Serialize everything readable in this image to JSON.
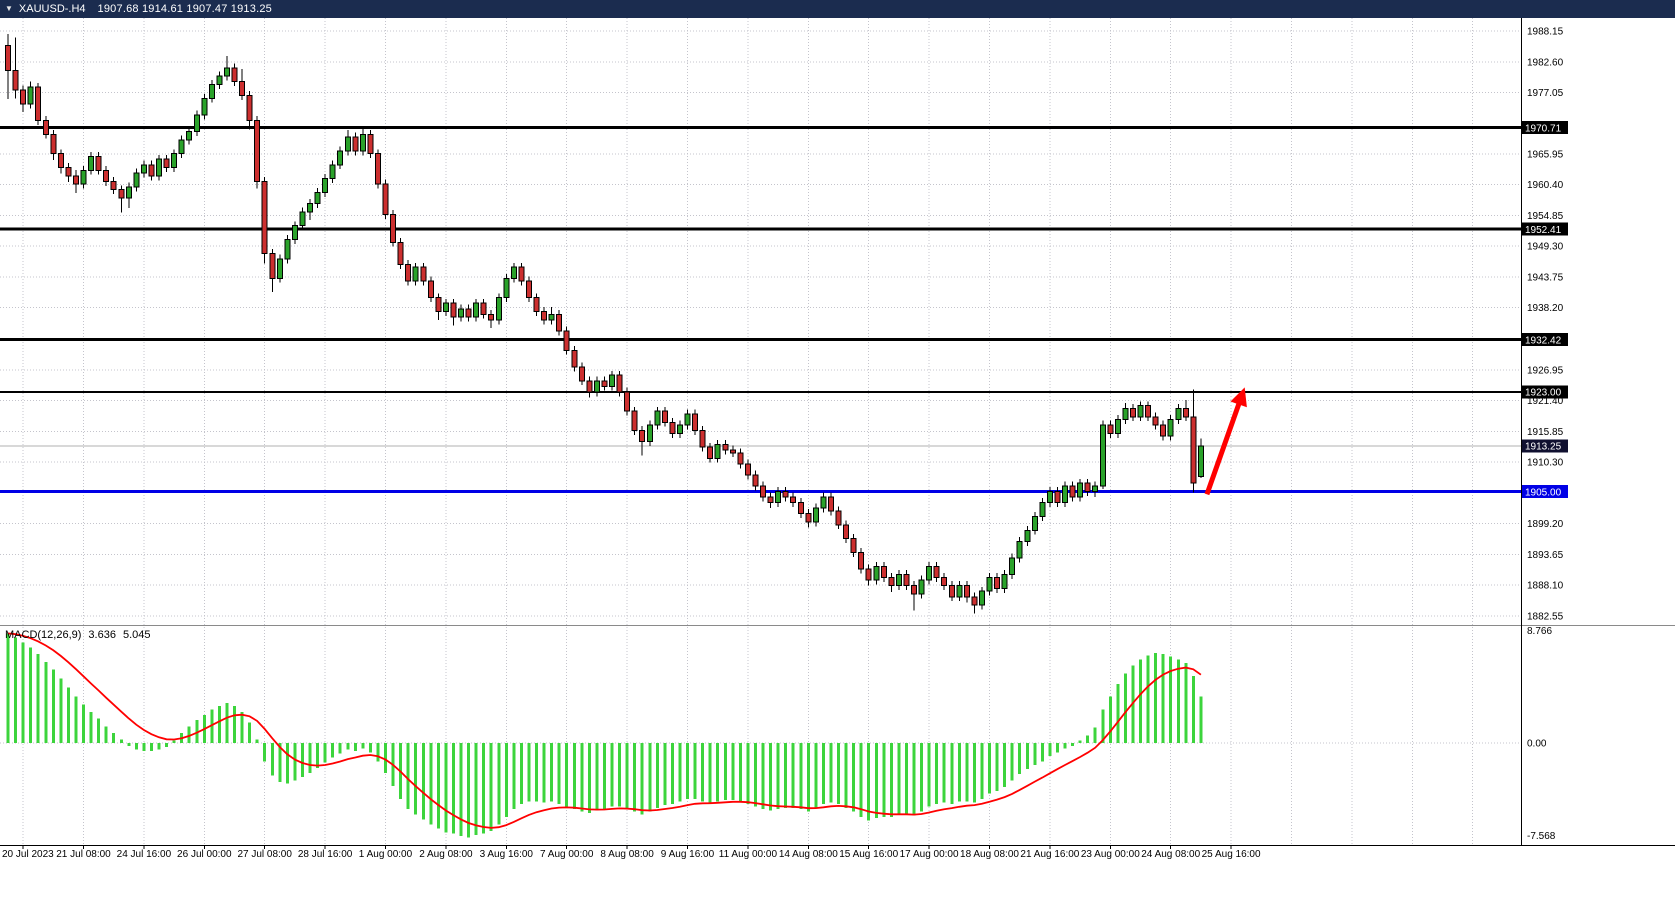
{
  "title_bar": {
    "dropdown_icon": "▼",
    "symbol": "XAUUSD-.H4",
    "ohlc": "1907.68 1914.61 1907.47 1913.25"
  },
  "chart_data": {
    "type": "candlestick",
    "symbol": "XAUUSD",
    "timeframe": "H4",
    "title": "XAUUSD-.H4",
    "ohlc_display": {
      "open": "1907.68",
      "high": "1914.61",
      "low": "1907.47",
      "close": "1913.25"
    },
    "price_axis": {
      "range_top": 1990.5,
      "range_bottom": 1880.9,
      "ticks": [
        "1988.15",
        "1982.60",
        "1977.05",
        "1965.95",
        "1960.40",
        "1954.85",
        "1949.30",
        "1943.75",
        "1938.20",
        "1926.95",
        "1921.40",
        "1915.85",
        "1910.30",
        "1899.20",
        "1893.65",
        "1888.10",
        "1882.55"
      ]
    },
    "time_labels": [
      "20 Jul 2023",
      "21 Jul 08:00",
      "24 Jul 16:00",
      "26 Jul 00:00",
      "27 Jul 08:00",
      "28 Jul 16:00",
      "1 Aug 00:00",
      "2 Aug 08:00",
      "3 Aug 16:00",
      "7 Aug 00:00",
      "8 Aug 08:00",
      "9 Aug 16:00",
      "11 Aug 00:00",
      "14 Aug 08:00",
      "15 Aug 16:00",
      "17 Aug 00:00",
      "18 Aug 08:00",
      "21 Aug 16:00",
      "23 Aug 00:00",
      "24 Aug 08:00",
      "25 Aug 16:00"
    ],
    "bars_per_label": 8,
    "first_label_bar_index": 2,
    "hlines": [
      {
        "label": "1970.71",
        "price": 1970.71,
        "color": "#000000",
        "width": 3,
        "badge_bg": "#000000"
      },
      {
        "label": "1952.41",
        "price": 1952.41,
        "color": "#000000",
        "width": 3,
        "badge_bg": "#000000"
      },
      {
        "label": "1932.42",
        "price": 1932.42,
        "color": "#000000",
        "width": 3,
        "badge_bg": "#000000"
      },
      {
        "label": "1923.00",
        "price": 1923.0,
        "color": "#000000",
        "width": 2,
        "badge_bg": "#000000"
      },
      {
        "label": "1905.00",
        "price": 1905.0,
        "color": "#0000e6",
        "width": 3,
        "badge_bg": "#0000e6"
      }
    ],
    "current_price": {
      "label": "1913.25",
      "value": 1913.25,
      "line_color": "#b0b0b0",
      "badge_bg": "#101030"
    },
    "arrow_annotation": {
      "from_bar": 158.8,
      "from_price": 1904.5,
      "to_bar": 163.8,
      "to_price": 1923.8,
      "color": "#ff0000"
    },
    "candles": [
      [
        1985.5,
        1987.6,
        1975.9,
        1981.0
      ],
      [
        1981.0,
        1987.0,
        1976.0,
        1977.5
      ],
      [
        1977.5,
        1978.3,
        1973.5,
        1975.0
      ],
      [
        1975.0,
        1979.0,
        1974.2,
        1978.0
      ],
      [
        1978.0,
        1978.8,
        1971.2,
        1972.0
      ],
      [
        1972.0,
        1972.8,
        1968.7,
        1969.5
      ],
      [
        1969.5,
        1970.3,
        1964.9,
        1966.0
      ],
      [
        1966.0,
        1966.8,
        1962.4,
        1963.5
      ],
      [
        1963.5,
        1964.3,
        1960.9,
        1962.0
      ],
      [
        1962.0,
        1963.1,
        1958.9,
        1960.5
      ],
      [
        1960.5,
        1963.8,
        1959.7,
        1963.0
      ],
      [
        1963.0,
        1966.3,
        1962.2,
        1965.5
      ],
      [
        1965.5,
        1966.3,
        1962.2,
        1963.0
      ],
      [
        1963.0,
        1963.8,
        1960.2,
        1961.0
      ],
      [
        1961.0,
        1961.8,
        1958.7,
        1959.5
      ],
      [
        1959.5,
        1960.3,
        1955.4,
        1958.0
      ],
      [
        1958.0,
        1960.8,
        1956.2,
        1960.0
      ],
      [
        1960.0,
        1963.3,
        1959.2,
        1962.5
      ],
      [
        1962.5,
        1964.8,
        1961.7,
        1964.0
      ],
      [
        1964.0,
        1964.8,
        1961.2,
        1962.0
      ],
      [
        1962.0,
        1965.8,
        1961.2,
        1965.0
      ],
      [
        1965.0,
        1965.8,
        1962.7,
        1963.5
      ],
      [
        1963.5,
        1966.8,
        1962.7,
        1966.0
      ],
      [
        1966.0,
        1969.3,
        1965.2,
        1968.5
      ],
      [
        1968.5,
        1970.8,
        1967.7,
        1970.0
      ],
      [
        1970.0,
        1973.8,
        1969.2,
        1973.0
      ],
      [
        1973.0,
        1976.8,
        1972.2,
        1976.0
      ],
      [
        1976.0,
        1979.3,
        1975.2,
        1978.5
      ],
      [
        1978.5,
        1980.8,
        1977.7,
        1980.0
      ],
      [
        1980.0,
        1983.6,
        1979.2,
        1981.5
      ],
      [
        1981.5,
        1982.3,
        1978.2,
        1979.0
      ],
      [
        1979.0,
        1981.3,
        1975.7,
        1976.5
      ],
      [
        1976.5,
        1977.3,
        1970.4,
        1972.0
      ],
      [
        1972.0,
        1972.8,
        1959.7,
        1961.0
      ],
      [
        1961.0,
        1961.8,
        1946.2,
        1948.0
      ],
      [
        1948.0,
        1948.8,
        1941.0,
        1943.5
      ],
      [
        1943.5,
        1947.8,
        1942.7,
        1947.0
      ],
      [
        1947.0,
        1951.3,
        1946.2,
        1950.5
      ],
      [
        1950.5,
        1953.8,
        1949.7,
        1953.0
      ],
      [
        1953.0,
        1956.3,
        1952.2,
        1955.5
      ],
      [
        1955.5,
        1957.8,
        1954.0,
        1957.0
      ],
      [
        1957.0,
        1959.8,
        1956.2,
        1959.0
      ],
      [
        1959.0,
        1962.3,
        1958.2,
        1961.5
      ],
      [
        1961.5,
        1964.8,
        1960.7,
        1964.0
      ],
      [
        1964.0,
        1967.3,
        1963.2,
        1966.5
      ],
      [
        1966.5,
        1970.3,
        1965.7,
        1969.0
      ],
      [
        1969.0,
        1969.8,
        1965.7,
        1966.5
      ],
      [
        1966.5,
        1970.5,
        1965.7,
        1969.5
      ],
      [
        1969.5,
        1970.3,
        1965.2,
        1966.0
      ],
      [
        1966.0,
        1966.8,
        1959.7,
        1960.5
      ],
      [
        1960.5,
        1961.3,
        1954.2,
        1955.0
      ],
      [
        1955.0,
        1955.8,
        1949.2,
        1950.0
      ],
      [
        1950.0,
        1950.8,
        1945.2,
        1946.0
      ],
      [
        1946.0,
        1946.8,
        1942.2,
        1943.0
      ],
      [
        1943.0,
        1946.3,
        1942.2,
        1945.5
      ],
      [
        1945.5,
        1946.3,
        1942.2,
        1943.0
      ],
      [
        1943.0,
        1943.8,
        1939.2,
        1940.0
      ],
      [
        1940.0,
        1940.8,
        1936.0,
        1937.5
      ],
      [
        1937.5,
        1939.8,
        1936.7,
        1939.0
      ],
      [
        1939.0,
        1939.8,
        1935.0,
        1936.5
      ],
      [
        1936.5,
        1938.8,
        1935.7,
        1938.0
      ],
      [
        1938.0,
        1938.8,
        1935.7,
        1936.5
      ],
      [
        1936.5,
        1939.8,
        1935.7,
        1939.0
      ],
      [
        1939.0,
        1939.8,
        1936.2,
        1937.0
      ],
      [
        1937.0,
        1937.8,
        1934.5,
        1936.0
      ],
      [
        1936.0,
        1940.8,
        1935.2,
        1940.0
      ],
      [
        1940.0,
        1944.3,
        1939.2,
        1943.5
      ],
      [
        1943.5,
        1946.3,
        1942.7,
        1945.5
      ],
      [
        1945.5,
        1946.3,
        1942.2,
        1943.0
      ],
      [
        1943.0,
        1943.8,
        1939.2,
        1940.0
      ],
      [
        1940.0,
        1940.8,
        1936.7,
        1937.5
      ],
      [
        1937.5,
        1938.3,
        1935.2,
        1936.0
      ],
      [
        1936.0,
        1938.3,
        1935.2,
        1937.0
      ],
      [
        1937.0,
        1937.8,
        1933.2,
        1934.0
      ],
      [
        1934.0,
        1934.8,
        1929.7,
        1930.5
      ],
      [
        1930.5,
        1931.3,
        1926.7,
        1927.5
      ],
      [
        1927.5,
        1928.3,
        1924.2,
        1925.0
      ],
      [
        1925.0,
        1925.8,
        1922.0,
        1923.0
      ],
      [
        1923.0,
        1925.8,
        1922.2,
        1925.0
      ],
      [
        1925.0,
        1925.8,
        1923.2,
        1924.0
      ],
      [
        1924.0,
        1926.8,
        1923.2,
        1926.0
      ],
      [
        1926.0,
        1926.8,
        1922.2,
        1923.0
      ],
      [
        1923.0,
        1923.8,
        1918.7,
        1919.5
      ],
      [
        1919.5,
        1920.3,
        1915.2,
        1916.0
      ],
      [
        1916.0,
        1916.8,
        1911.5,
        1914.0
      ],
      [
        1914.0,
        1917.8,
        1913.2,
        1917.0
      ],
      [
        1917.0,
        1920.3,
        1916.2,
        1919.5
      ],
      [
        1919.5,
        1920.3,
        1916.7,
        1917.5
      ],
      [
        1917.5,
        1918.3,
        1914.7,
        1915.5
      ],
      [
        1915.5,
        1917.8,
        1914.7,
        1917.0
      ],
      [
        1917.0,
        1919.8,
        1916.2,
        1919.0
      ],
      [
        1919.0,
        1919.8,
        1915.2,
        1916.0
      ],
      [
        1916.0,
        1916.8,
        1912.2,
        1913.0
      ],
      [
        1913.0,
        1913.8,
        1910.2,
        1911.0
      ],
      [
        1911.0,
        1914.3,
        1910.2,
        1913.5
      ],
      [
        1913.5,
        1914.3,
        1911.7,
        1912.5
      ],
      [
        1912.5,
        1913.3,
        1911.2,
        1912.0
      ],
      [
        1912.0,
        1912.8,
        1909.2,
        1910.0
      ],
      [
        1910.0,
        1910.8,
        1907.2,
        1908.0
      ],
      [
        1908.0,
        1908.8,
        1905.2,
        1906.0
      ],
      [
        1906.0,
        1906.8,
        1903.2,
        1904.0
      ],
      [
        1904.0,
        1904.8,
        1902.0,
        1903.0
      ],
      [
        1903.0,
        1905.8,
        1902.2,
        1905.0
      ],
      [
        1905.0,
        1905.8,
        1903.2,
        1904.0
      ],
      [
        1904.0,
        1904.8,
        1902.2,
        1903.0
      ],
      [
        1903.0,
        1903.8,
        1900.2,
        1901.0
      ],
      [
        1901.0,
        1901.8,
        1898.5,
        1899.5
      ],
      [
        1899.5,
        1902.8,
        1898.7,
        1902.0
      ],
      [
        1902.0,
        1904.8,
        1901.2,
        1904.0
      ],
      [
        1904.0,
        1904.8,
        1900.7,
        1901.5
      ],
      [
        1901.5,
        1902.3,
        1898.2,
        1899.0
      ],
      [
        1899.0,
        1899.8,
        1895.7,
        1896.5
      ],
      [
        1896.5,
        1897.3,
        1893.2,
        1894.0
      ],
      [
        1894.0,
        1894.8,
        1890.2,
        1891.0
      ],
      [
        1891.0,
        1891.8,
        1888.0,
        1889.0
      ],
      [
        1889.0,
        1892.3,
        1888.2,
        1891.5
      ],
      [
        1891.5,
        1892.3,
        1888.7,
        1889.5
      ],
      [
        1889.5,
        1890.3,
        1886.9,
        1888.0
      ],
      [
        1888.0,
        1890.8,
        1887.2,
        1890.0
      ],
      [
        1890.0,
        1890.8,
        1887.2,
        1888.0
      ],
      [
        1888.0,
        1888.8,
        1883.5,
        1886.5
      ],
      [
        1886.5,
        1889.8,
        1885.7,
        1889.0
      ],
      [
        1889.0,
        1892.3,
        1888.2,
        1891.5
      ],
      [
        1891.5,
        1892.3,
        1888.7,
        1889.5
      ],
      [
        1889.5,
        1890.3,
        1887.2,
        1888.0
      ],
      [
        1888.0,
        1888.8,
        1885.2,
        1886.0
      ],
      [
        1886.0,
        1888.8,
        1885.2,
        1888.0
      ],
      [
        1888.0,
        1888.8,
        1885.0,
        1886.0
      ],
      [
        1886.0,
        1886.8,
        1883.0,
        1884.5
      ],
      [
        1884.5,
        1887.8,
        1883.7,
        1887.0
      ],
      [
        1887.0,
        1890.3,
        1886.2,
        1889.5
      ],
      [
        1889.5,
        1890.3,
        1886.7,
        1887.5
      ],
      [
        1887.5,
        1890.8,
        1886.7,
        1890.0
      ],
      [
        1890.0,
        1893.8,
        1889.2,
        1893.0
      ],
      [
        1893.0,
        1896.8,
        1892.2,
        1896.0
      ],
      [
        1896.0,
        1898.8,
        1895.2,
        1898.0
      ],
      [
        1898.0,
        1901.3,
        1897.2,
        1900.5
      ],
      [
        1900.5,
        1903.8,
        1899.7,
        1903.0
      ],
      [
        1903.0,
        1905.8,
        1902.2,
        1905.0
      ],
      [
        1905.0,
        1905.8,
        1902.2,
        1903.0
      ],
      [
        1903.0,
        1906.8,
        1902.2,
        1906.0
      ],
      [
        1906.0,
        1906.8,
        1903.2,
        1904.0
      ],
      [
        1904.0,
        1907.3,
        1903.2,
        1906.5
      ],
      [
        1906.5,
        1907.3,
        1904.2,
        1905.0
      ],
      [
        1905.0,
        1906.8,
        1904.0,
        1906.0
      ],
      [
        1906.0,
        1917.8,
        1905.5,
        1917.0
      ],
      [
        1917.0,
        1917.8,
        1914.7,
        1915.5
      ],
      [
        1915.5,
        1918.8,
        1914.7,
        1918.0
      ],
      [
        1918.0,
        1921.0,
        1917.2,
        1920.0
      ],
      [
        1920.0,
        1920.8,
        1917.7,
        1918.5
      ],
      [
        1918.5,
        1921.3,
        1917.7,
        1920.5
      ],
      [
        1920.5,
        1921.3,
        1917.7,
        1918.5
      ],
      [
        1918.5,
        1919.3,
        1916.2,
        1917.0
      ],
      [
        1917.0,
        1917.8,
        1914.2,
        1915.0
      ],
      [
        1915.0,
        1918.8,
        1914.2,
        1918.0
      ],
      [
        1918.0,
        1920.8,
        1917.2,
        1920.0
      ],
      [
        1920.0,
        1921.5,
        1917.7,
        1918.5
      ],
      [
        1918.5,
        1923.4,
        1904.8,
        1906.5
      ],
      [
        1907.68,
        1914.61,
        1907.47,
        1913.25
      ]
    ],
    "macd": {
      "name": "MACD(12,26,9)",
      "value_display": "3.636",
      "signal_display": "5.045",
      "signal_period": 9,
      "scale_max": 8.766,
      "scale_min": -7.568,
      "scale_labels": [
        "8.766",
        "0.00",
        "-7.568"
      ],
      "values": [
        8.5,
        8.2,
        7.8,
        7.4,
        6.9,
        6.3,
        5.7,
        5.0,
        4.3,
        3.6,
        3.0,
        2.4,
        1.9,
        1.3,
        0.8,
        0.3,
        -0.2,
        -0.5,
        -0.6,
        -0.6,
        -0.5,
        -0.3,
        0.2,
        0.8,
        1.3,
        1.8,
        2.2,
        2.6,
        2.9,
        3.1,
        2.9,
        2.4,
        1.6,
        0.3,
        -1.4,
        -2.5,
        -3.0,
        -3.1,
        -2.9,
        -2.6,
        -2.3,
        -1.9,
        -1.5,
        -1.1,
        -0.8,
        -0.5,
        -0.6,
        -0.4,
        -0.7,
        -1.4,
        -2.3,
        -3.3,
        -4.3,
        -5.1,
        -5.5,
        -5.9,
        -6.3,
        -6.6,
        -6.9,
        -7.0,
        -7.2,
        -7.3,
        -7.1,
        -7.0,
        -6.8,
        -6.3,
        -5.7,
        -5.1,
        -4.7,
        -4.5,
        -4.5,
        -4.6,
        -4.5,
        -4.7,
        -4.9,
        -5.1,
        -5.3,
        -5.4,
        -5.2,
        -5.1,
        -4.9,
        -4.9,
        -5.1,
        -5.3,
        -5.5,
        -5.3,
        -5.0,
        -4.8,
        -4.7,
        -4.5,
        -4.3,
        -4.3,
        -4.5,
        -4.6,
        -4.5,
        -4.4,
        -4.4,
        -4.5,
        -4.7,
        -4.9,
        -5.1,
        -5.2,
        -5.1,
        -5.0,
        -5.0,
        -5.1,
        -5.3,
        -5.0,
        -4.7,
        -4.6,
        -4.7,
        -5.0,
        -5.3,
        -5.7,
        -6.0,
        -5.8,
        -5.7,
        -5.7,
        -5.5,
        -5.5,
        -5.6,
        -5.3,
        -4.9,
        -4.7,
        -4.6,
        -4.7,
        -4.5,
        -4.5,
        -4.6,
        -4.3,
        -3.9,
        -3.7,
        -3.4,
        -2.9,
        -2.4,
        -2.0,
        -1.7,
        -1.4,
        -1.0,
        -0.7,
        -0.4,
        -0.2,
        0.2,
        0.6,
        1.2,
        2.6,
        3.6,
        4.6,
        5.4,
        6.0,
        6.5,
        6.8,
        7.0,
        6.9,
        6.7,
        6.5,
        6.2,
        5.2,
        3.636
      ]
    },
    "colors": {
      "up": "#2aa22a",
      "down": "#cc2f2f",
      "wick": "#000000",
      "grid": "#c4c4cc",
      "macd_bar": "#3cd43c",
      "signal_line": "#ff0000",
      "background": "#ffffff",
      "axis_text": "#000000",
      "titlebar_bg": "#1b2c4f",
      "titlebar_text": "#ffffff"
    }
  }
}
